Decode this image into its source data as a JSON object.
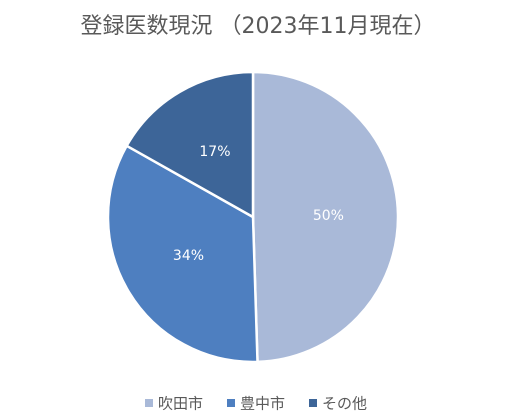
{
  "chart_data": {
    "type": "pie",
    "title": "登録医数現況 （2023年11月現在）",
    "categories": [
      "吹田市",
      "豊中市",
      "その他"
    ],
    "values": [
      50,
      34,
      17
    ],
    "value_labels": [
      "50%",
      "34%",
      "17%"
    ],
    "colors": [
      "#a9b9d8",
      "#4e7fc0",
      "#3d6598"
    ],
    "legend": "bottom"
  }
}
